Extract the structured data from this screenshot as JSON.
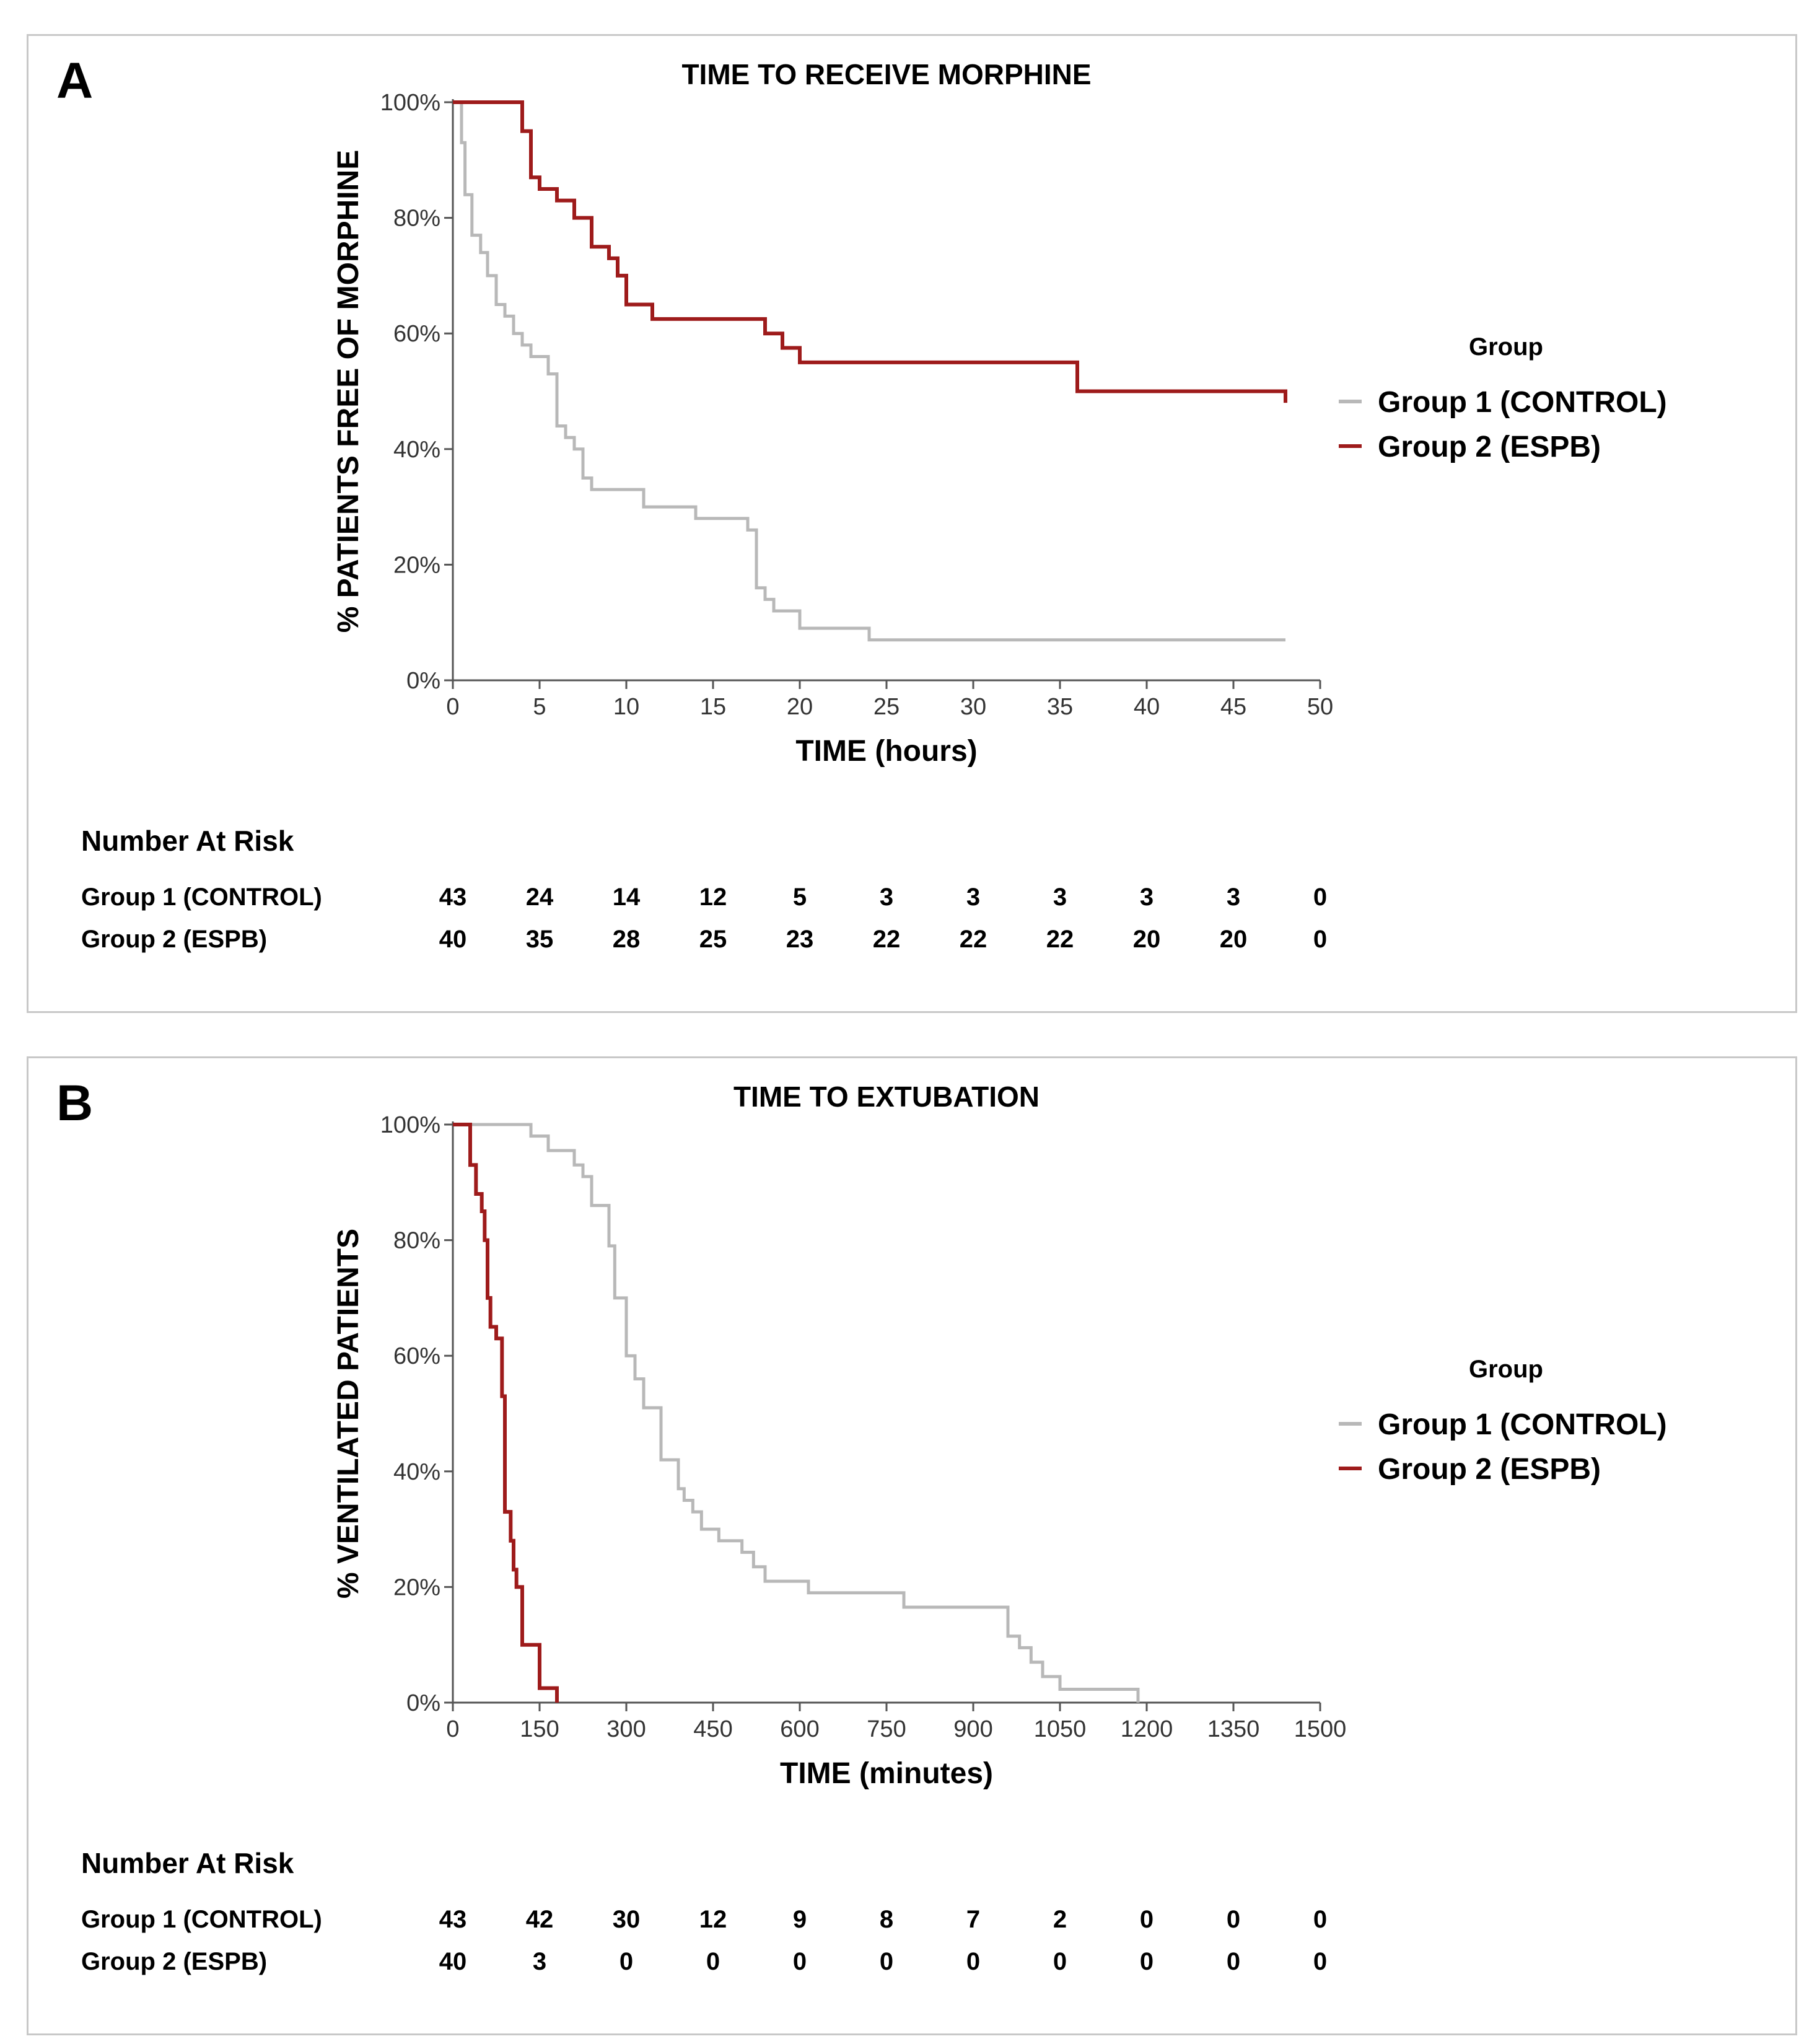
{
  "chart_data": [
    {
      "type": "line",
      "panel_letter": "A",
      "title": "TIME TO RECEIVE MORPHINE",
      "xlabel": "TIME (hours)",
      "ylabel": "% PATIENTS FREE OF MORPHINE",
      "xlim": [
        0,
        50
      ],
      "ylim": [
        0,
        100
      ],
      "x_ticks": [
        0,
        5,
        10,
        15,
        20,
        25,
        30,
        35,
        40,
        45,
        50
      ],
      "x_tick_labels": [
        "0",
        "5",
        "10",
        "15",
        "20",
        "25",
        "30",
        "35",
        "40",
        "45",
        "50"
      ],
      "y_ticks": [
        0,
        20,
        40,
        60,
        80,
        100
      ],
      "y_tick_labels": [
        "0%",
        "20%",
        "40%",
        "60%",
        "80%",
        "100%"
      ],
      "grid": false,
      "legend_position": "right",
      "legend_title": "Group",
      "series": [
        {
          "name": "Group 1 (CONTROL)",
          "color": "#b8b8b8",
          "steps": [
            [
              0,
              100
            ],
            [
              0.5,
              93
            ],
            [
              0.7,
              84
            ],
            [
              1.1,
              77
            ],
            [
              1.6,
              74
            ],
            [
              2.0,
              70
            ],
            [
              2.5,
              65
            ],
            [
              3.0,
              63
            ],
            [
              3.5,
              60
            ],
            [
              4.0,
              58
            ],
            [
              4.5,
              56
            ],
            [
              5.5,
              53
            ],
            [
              6.0,
              44
            ],
            [
              6.5,
              42
            ],
            [
              7.0,
              40
            ],
            [
              7.5,
              35
            ],
            [
              8.0,
              33
            ],
            [
              11.0,
              30
            ],
            [
              14.0,
              28
            ],
            [
              17.0,
              26
            ],
            [
              17.5,
              16
            ],
            [
              18.0,
              14
            ],
            [
              18.5,
              12
            ],
            [
              20.0,
              9
            ],
            [
              24.0,
              7
            ],
            [
              48.0,
              7
            ]
          ]
        },
        {
          "name": "Group 2 (ESPB)",
          "color": "#9e1b1b",
          "steps": [
            [
              0,
              100
            ],
            [
              4.0,
              95
            ],
            [
              4.5,
              87
            ],
            [
              5.0,
              85
            ],
            [
              6.0,
              83
            ],
            [
              7.0,
              80
            ],
            [
              8.0,
              75
            ],
            [
              9.0,
              73
            ],
            [
              9.5,
              70
            ],
            [
              10.0,
              65
            ],
            [
              11.5,
              62.5
            ],
            [
              18.0,
              60
            ],
            [
              19.0,
              57.5
            ],
            [
              20.0,
              55
            ],
            [
              36.0,
              50
            ],
            [
              48.0,
              48
            ]
          ]
        }
      ],
      "risk_table": {
        "title": "Number At Risk",
        "x": [
          0,
          5,
          10,
          15,
          20,
          25,
          30,
          35,
          40,
          45,
          50
        ],
        "rows": [
          {
            "label": "Group 1 (CONTROL)",
            "values": [
              "43",
              "24",
              "14",
              "12",
              "5",
              "3",
              "3",
              "3",
              "3",
              "3",
              "0"
            ]
          },
          {
            "label": "Group 2 (ESPB)",
            "values": [
              "40",
              "35",
              "28",
              "25",
              "23",
              "22",
              "22",
              "22",
              "20",
              "20",
              "0"
            ]
          }
        ]
      }
    },
    {
      "type": "line",
      "panel_letter": "B",
      "title": "TIME TO EXTUBATION",
      "xlabel": "TIME (minutes)",
      "ylabel": "% VENTILATED PATIENTS",
      "xlim": [
        0,
        1500
      ],
      "ylim": [
        0,
        100
      ],
      "x_ticks": [
        0,
        150,
        300,
        450,
        600,
        750,
        900,
        1050,
        1200,
        1350,
        1500
      ],
      "x_tick_labels": [
        "0",
        "150",
        "300",
        "450",
        "600",
        "750",
        "900",
        "1050",
        "1200",
        "1350",
        "1500"
      ],
      "y_ticks": [
        0,
        20,
        40,
        60,
        80,
        100
      ],
      "y_tick_labels": [
        "0%",
        "20%",
        "40%",
        "60%",
        "80%",
        "100%"
      ],
      "grid": false,
      "legend_position": "right",
      "legend_title": "Group",
      "series": [
        {
          "name": "Group 1 (CONTROL)",
          "color": "#b8b8b8",
          "steps": [
            [
              0,
              100
            ],
            [
              135,
              98
            ],
            [
              165,
              95.5
            ],
            [
              210,
              93
            ],
            [
              225,
              91
            ],
            [
              240,
              86
            ],
            [
              270,
              79
            ],
            [
              280,
              70
            ],
            [
              300,
              60
            ],
            [
              315,
              56
            ],
            [
              330,
              51
            ],
            [
              360,
              42
            ],
            [
              390,
              37
            ],
            [
              400,
              35
            ],
            [
              415,
              33
            ],
            [
              430,
              30
            ],
            [
              460,
              28
            ],
            [
              500,
              26
            ],
            [
              520,
              23.5
            ],
            [
              540,
              21
            ],
            [
              615,
              19
            ],
            [
              780,
              16.5
            ],
            [
              960,
              11.5
            ],
            [
              980,
              9.5
            ],
            [
              1000,
              7
            ],
            [
              1020,
              4.5
            ],
            [
              1050,
              2.3
            ],
            [
              1185,
              0
            ]
          ]
        },
        {
          "name": "Group 2 (ESPB)",
          "color": "#9e1b1b",
          "steps": [
            [
              0,
              100
            ],
            [
              30,
              93
            ],
            [
              40,
              88
            ],
            [
              50,
              85
            ],
            [
              55,
              80
            ],
            [
              60,
              70
            ],
            [
              65,
              65
            ],
            [
              75,
              63
            ],
            [
              85,
              53
            ],
            [
              90,
              33
            ],
            [
              100,
              28
            ],
            [
              105,
              23
            ],
            [
              110,
              20
            ],
            [
              120,
              10
            ],
            [
              150,
              2.5
            ],
            [
              180,
              0
            ]
          ]
        }
      ],
      "risk_table": {
        "title": "Number At Risk",
        "x": [
          0,
          150,
          300,
          450,
          600,
          750,
          900,
          1050,
          1200,
          1350,
          1500
        ],
        "rows": [
          {
            "label": "Group 1 (CONTROL)",
            "values": [
              "43",
              "42",
              "30",
              "12",
              "9",
              "8",
              "7",
              "2",
              "0",
              "0",
              "0"
            ]
          },
          {
            "label": "Group 2 (ESPB)",
            "values": [
              "40",
              "3",
              "0",
              "0",
              "0",
              "0",
              "0",
              "0",
              "0",
              "0",
              "0"
            ]
          }
        ]
      }
    }
  ]
}
